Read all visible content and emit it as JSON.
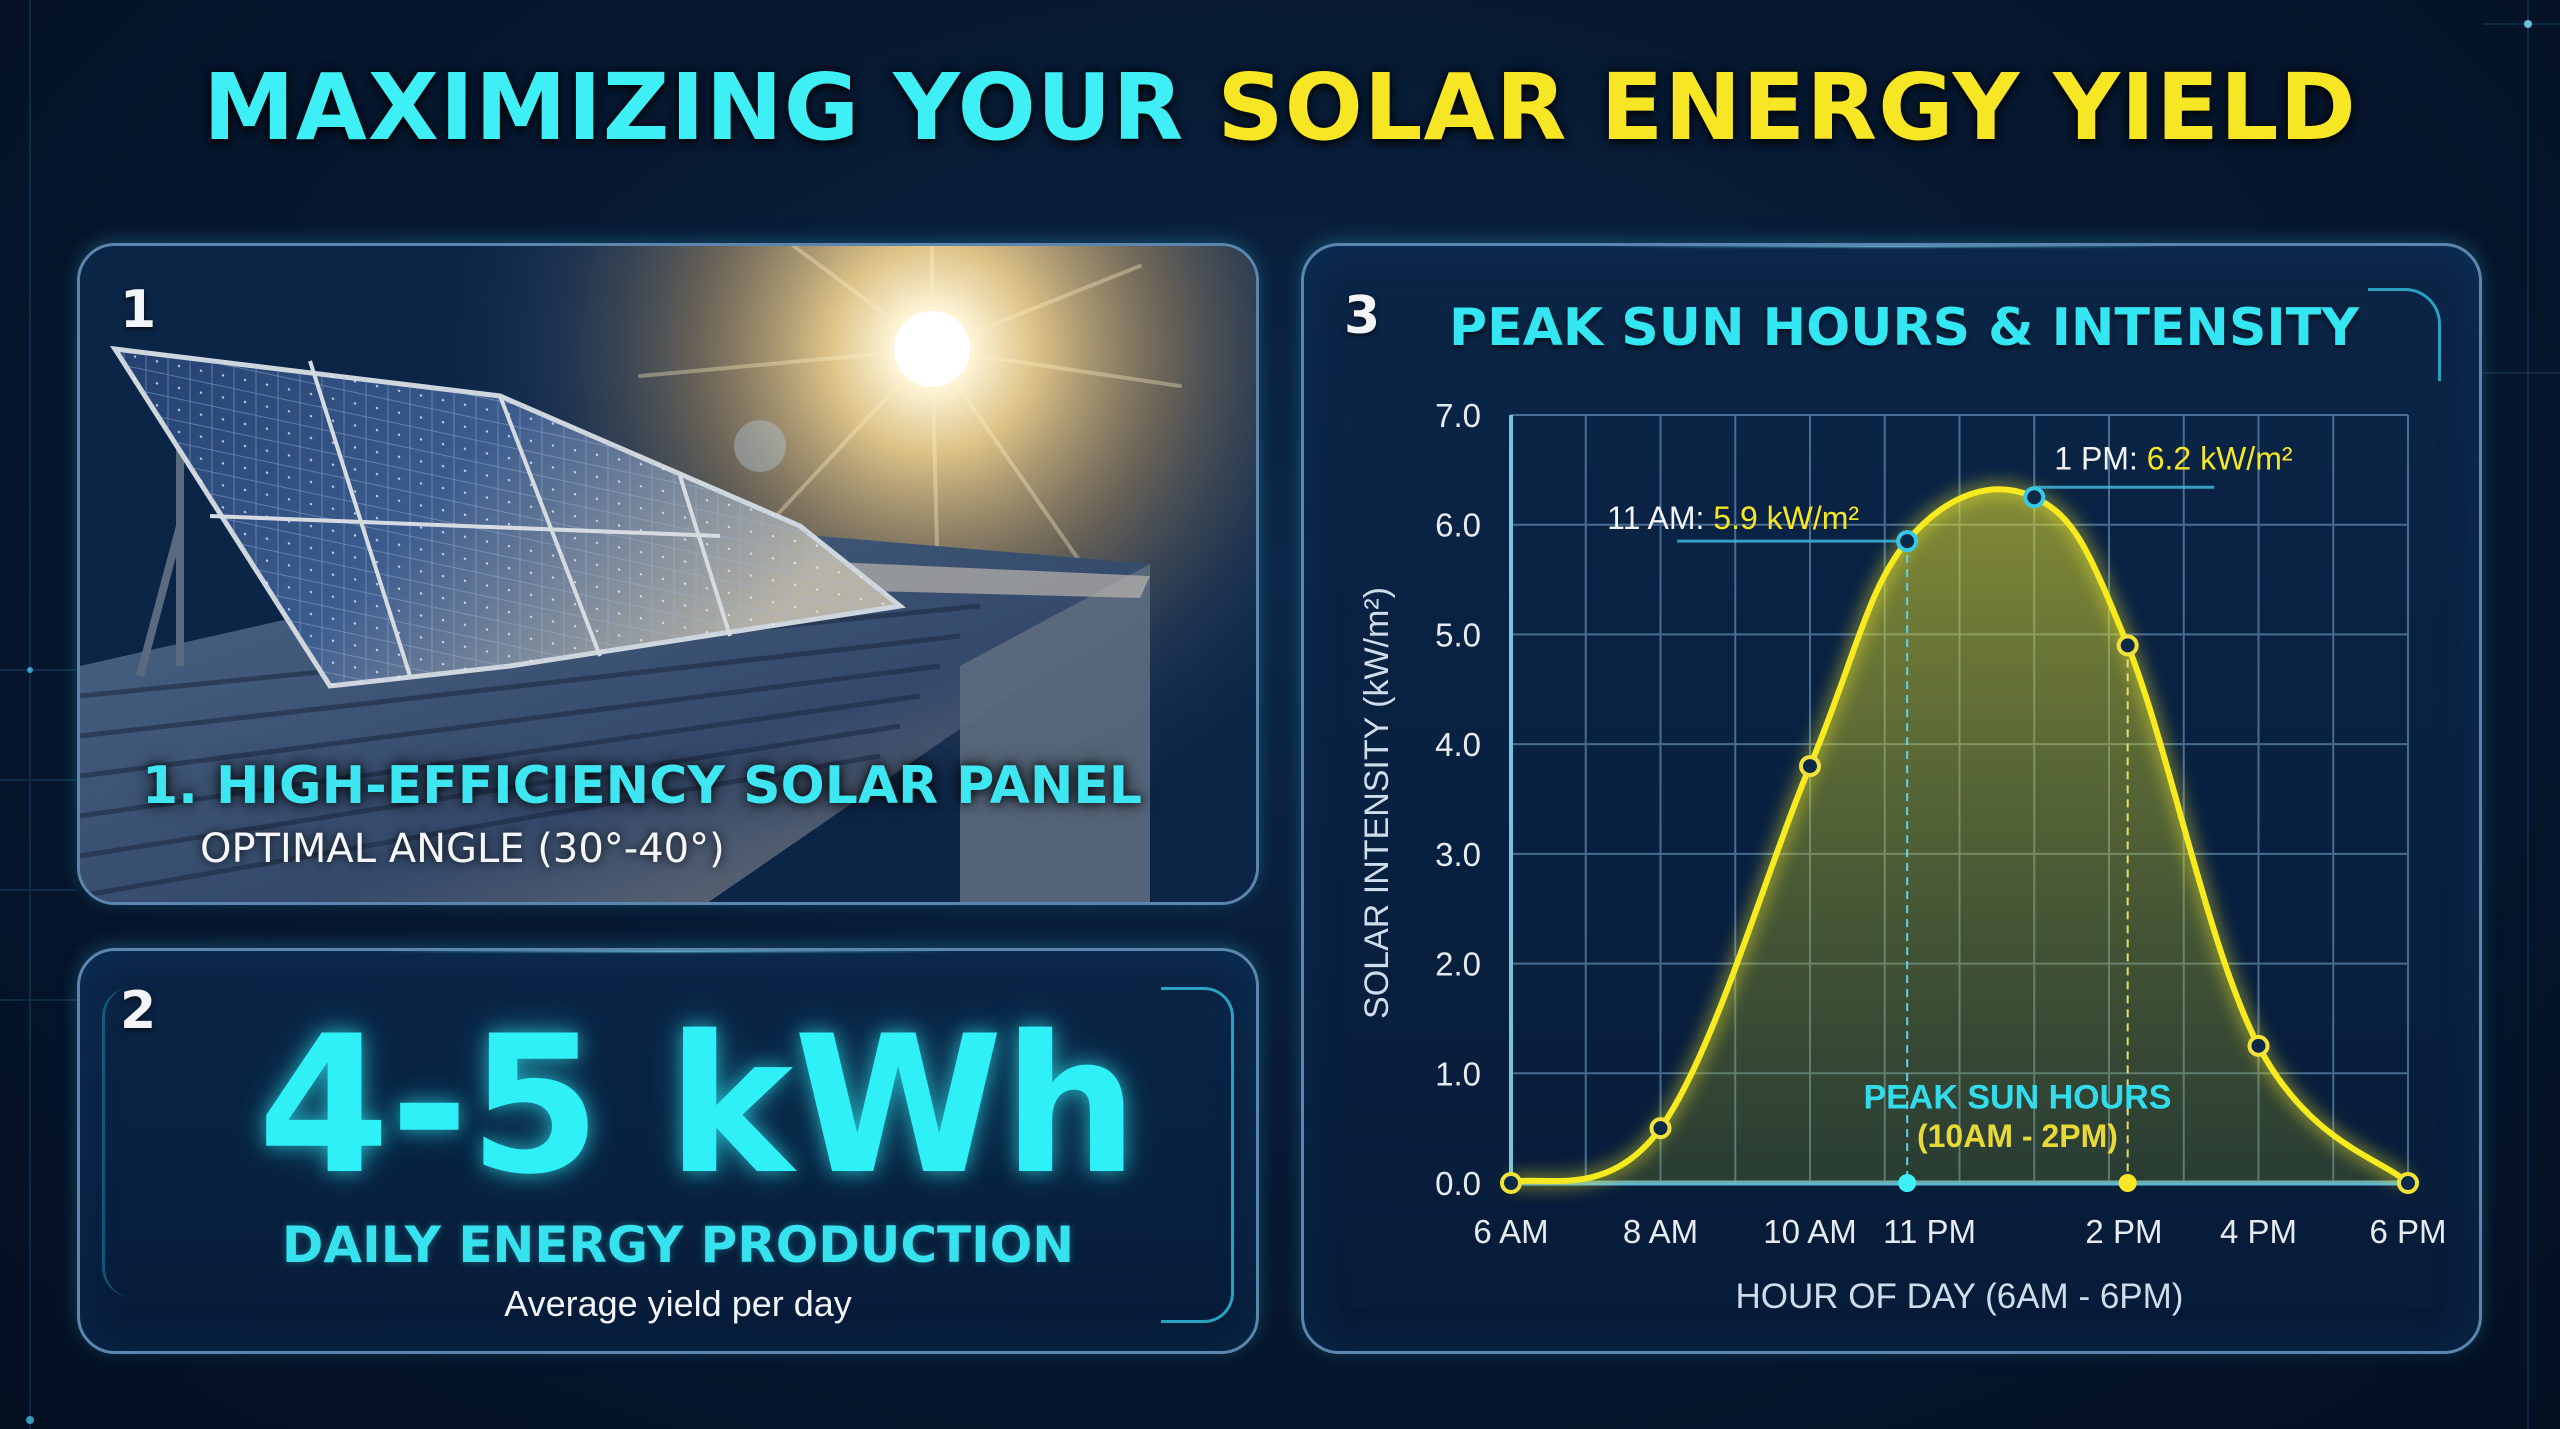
{
  "title": {
    "part1": "MAXIMIZING YOUR",
    "part2": "SOLAR ENERGY YIELD"
  },
  "colors": {
    "cyan": "#3ef0f5",
    "yellow": "#f7e623",
    "background": "#071a33",
    "panel_border": "#5c86ad"
  },
  "panel1": {
    "number": "1",
    "caption": "1. HIGH-EFFICIENCY SOLAR PANEL",
    "subcaption": "OPTIMAL ANGLE (30°-40°)",
    "image": "solar-panel-on-rooftop-with-sun"
  },
  "panel2": {
    "number": "2",
    "value": "4-5 kWh",
    "label": "DAILY ENERGY PRODUCTION",
    "sublabel": "Average yield per day"
  },
  "panel3": {
    "number": "3",
    "title": "PEAK SUN HOURS & INTENSITY"
  },
  "chart_data": {
    "type": "line",
    "title": "PEAK SUN HOURS & INTENSITY",
    "xlabel": "HOUR OF DAY (6AM - 6PM)",
    "ylabel": "SOLAR INTENSITY (kW/m²)",
    "ylim": [
      0,
      7
    ],
    "xlim": [
      6,
      18
    ],
    "grid": true,
    "y_ticks": [
      "0.0",
      "1.0",
      "2.0",
      "3.0",
      "4.0",
      "5.0",
      "6.0",
      "7.0"
    ],
    "x_tick_labels": [
      {
        "label": "6 AM",
        "x": 6
      },
      {
        "label": "8 AM",
        "x": 8
      },
      {
        "label": "10 AM",
        "x": 10
      },
      {
        "label": "11 PM",
        "x": 11.6
      },
      {
        "label": "2 PM",
        "x": 14.2
      },
      {
        "label": "4 PM",
        "x": 16
      },
      {
        "label": "6 PM",
        "x": 18
      }
    ],
    "series": [
      {
        "name": "Solar Intensity",
        "x": [
          6,
          8,
          10,
          11.3,
          13,
          14.25,
          16,
          18
        ],
        "values": [
          0.0,
          0.5,
          3.8,
          5.85,
          6.25,
          4.9,
          1.25,
          0.0
        ]
      }
    ],
    "annotations": [
      {
        "label": "11 AM:",
        "value": "5.9 kW/m²",
        "x": 11.3,
        "y": 5.85
      },
      {
        "label": "1 PM:",
        "value": "6.2 kW/m²",
        "x": 13,
        "y": 6.25
      }
    ],
    "peak_band": {
      "title": "PEAK SUN HOURS",
      "range_label": "(10AM - 2PM)",
      "x_start": 11.3,
      "x_end": 14.25
    }
  }
}
